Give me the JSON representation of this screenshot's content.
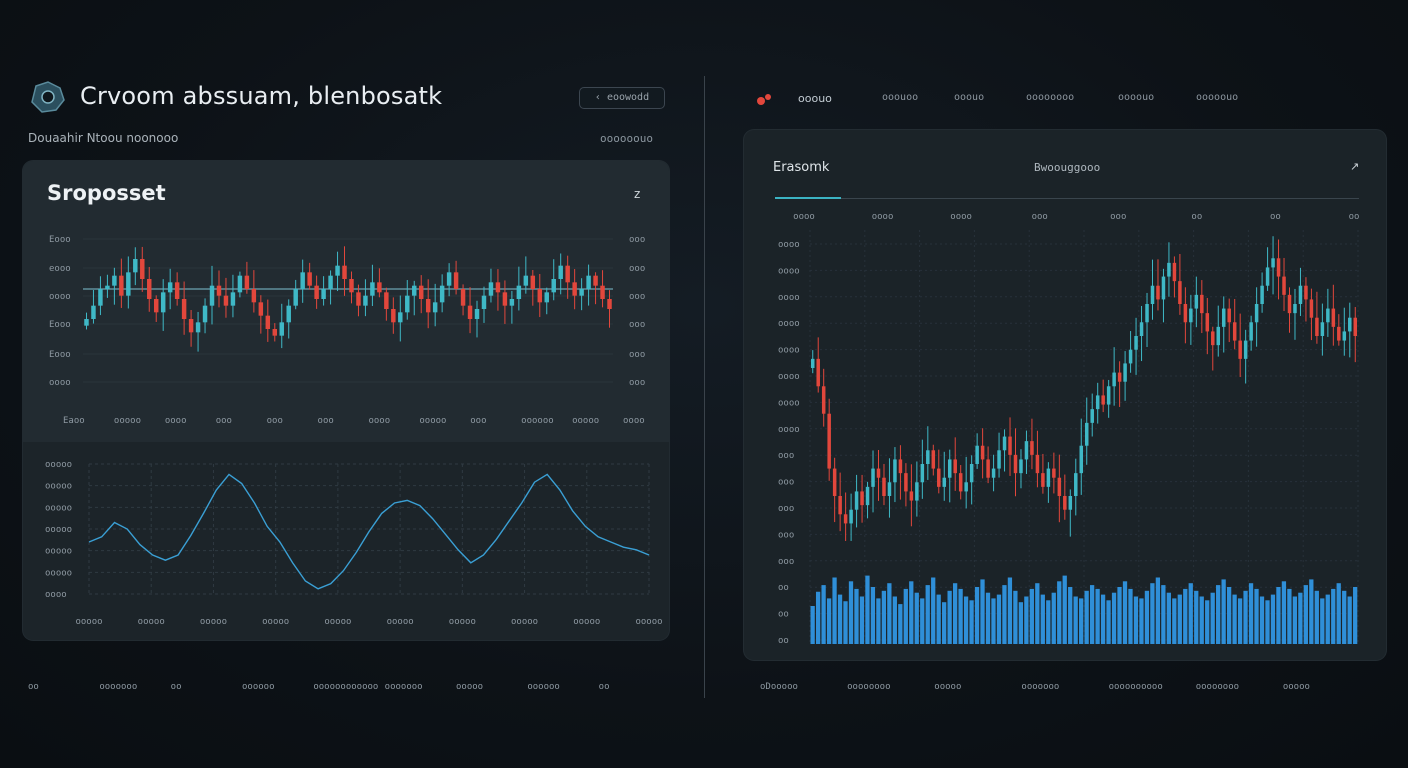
{
  "header": {
    "app_title": "Crvoom abssuam, blenbosatk",
    "button_label": "‹ eoowodd",
    "subheader_left": "Douaahir Ntoou noonooo",
    "subheader_right": "oooooouo"
  },
  "nav": {
    "active": "ooouo",
    "items": [
      "ooouoo",
      "ooouo",
      "oooooooo",
      "oooouo",
      "ooooouo"
    ]
  },
  "footer": {
    "left_items": [
      "oo",
      "ooooooo",
      "oo",
      "oooooo",
      "oooooooooooo",
      "ooooooo",
      "ooooo",
      "oooooo",
      "oo"
    ],
    "right_items": [
      "oDooooo",
      "oooooooo",
      "ooooo",
      "ooooooo",
      "oooooooooo",
      "oooooooo",
      "ooooo"
    ]
  },
  "colors": {
    "up": "#3fb8c6",
    "down": "#e2473c",
    "line": "#3a9fd4",
    "volume": "#2f8fd8",
    "accent": "#3bb3c3"
  },
  "chart_data": [
    {
      "type": "candlestick",
      "title": "Sroposset",
      "corner_label": "z",
      "y_ticks_left": [
        "Eooo",
        "eooo",
        "oooo",
        "Eooo",
        "Eooo",
        "oooo"
      ],
      "y_ticks_right": [
        "ooo",
        "ooo",
        "ooo",
        "ooo",
        "ooo",
        "ooo"
      ],
      "x_ticks": [
        "Eaoo",
        "ooooo",
        "oooo",
        "ooo",
        "ooo",
        "ooo",
        "oooo",
        "ooooo",
        "ooo",
        "oooooo",
        "ooooo",
        "oooo"
      ],
      "reference_line": 57,
      "ylim": [
        0,
        100
      ],
      "close": [
        48,
        52,
        57,
        58,
        61,
        55,
        62,
        66,
        60,
        54,
        50,
        56,
        59,
        54,
        48,
        44,
        47,
        52,
        58,
        55,
        52,
        56,
        61,
        57,
        53,
        49,
        45,
        43,
        47,
        52,
        57,
        62,
        58,
        54,
        57,
        61,
        64,
        60,
        56,
        52,
        55,
        59,
        56,
        51,
        47,
        50,
        55,
        58,
        54,
        50,
        53,
        58,
        62,
        57,
        52,
        48,
        51,
        55,
        59,
        56,
        52,
        54,
        58,
        61,
        57,
        53,
        56,
        60,
        64,
        59,
        55,
        57,
        61,
        58,
        54,
        51
      ]
    },
    {
      "type": "line",
      "y_ticks": [
        "ooooo",
        "ooooo",
        "ooooo",
        "ooooo",
        "ooooo",
        "ooooo",
        "oooo"
      ],
      "x_ticks": [
        "ooooo",
        "ooooo",
        "ooooo",
        "ooooo",
        "ooooo",
        "ooooo",
        "ooooo",
        "ooooo",
        "ooooo",
        "ooooo"
      ],
      "ylim": [
        0,
        100
      ],
      "series": [
        {
          "values": [
            40,
            44,
            55,
            50,
            38,
            30,
            26,
            30,
            45,
            62,
            80,
            92,
            85,
            70,
            52,
            40,
            24,
            10,
            4,
            8,
            18,
            32,
            48,
            62,
            70,
            72,
            68,
            58,
            46,
            34,
            24,
            30,
            42,
            56,
            70,
            86,
            92,
            80,
            64,
            52,
            44,
            40,
            36,
            34,
            30
          ]
        }
      ]
    },
    {
      "type": "candlestick",
      "title": "Erasomk",
      "subtitle": "Bwoouggooo",
      "corner_label": "↗",
      "x_ticks": [
        "oooo",
        "oooo",
        "oooo",
        "ooo",
        "ooo",
        "oo",
        "oo",
        "oo"
      ],
      "y_ticks": [
        "oooo",
        "oooo",
        "oooo",
        "oooo",
        "oooo",
        "oooo",
        "oooo",
        "oooo",
        "ooo",
        "ooo",
        "ooo",
        "ooo",
        "ooo",
        "oo",
        "oo",
        "oo"
      ],
      "ylim": [
        0,
        100
      ],
      "close": [
        74,
        68,
        62,
        50,
        44,
        40,
        38,
        41,
        45,
        42,
        46,
        50,
        48,
        44,
        47,
        52,
        49,
        45,
        43,
        47,
        51,
        54,
        50,
        46,
        48,
        52,
        49,
        45,
        47,
        51,
        55,
        52,
        48,
        50,
        54,
        57,
        53,
        49,
        52,
        56,
        53,
        49,
        46,
        50,
        48,
        44,
        41,
        44,
        49,
        55,
        60,
        63,
        66,
        64,
        68,
        71,
        69,
        73,
        76,
        79,
        82,
        86,
        90,
        87,
        92,
        95,
        91,
        86,
        82,
        85,
        88,
        84,
        80,
        77,
        81,
        85,
        82,
        78,
        74,
        78,
        82,
        86,
        90,
        94,
        96,
        92,
        88,
        84,
        86,
        90,
        87,
        83,
        79,
        82,
        85,
        81,
        78,
        80,
        83,
        79
      ],
      "volume": [
        40,
        55,
        62,
        48,
        70,
        52,
        45,
        66,
        58,
        50,
        72,
        60,
        48,
        56,
        64,
        50,
        42,
        58,
        66,
        54,
        48,
        62,
        70,
        52,
        44,
        56,
        64,
        58,
        50,
        46,
        60,
        68,
        54,
        48,
        52,
        62,
        70,
        56,
        44,
        50,
        58,
        64,
        52,
        46,
        54,
        66,
        72,
        60,
        50,
        48,
        56,
        62,
        58,
        52,
        46,
        54,
        60,
        66,
        58,
        50,
        48,
        56,
        64,
        70,
        62,
        54,
        48,
        52,
        58,
        64,
        56,
        50,
        46,
        54,
        62,
        68,
        60,
        52,
        48,
        56,
        64,
        58,
        50,
        46,
        52,
        60,
        66,
        58,
        50,
        54,
        62,
        68,
        56,
        48,
        52,
        58,
        64,
        56,
        50,
        60
      ]
    }
  ]
}
